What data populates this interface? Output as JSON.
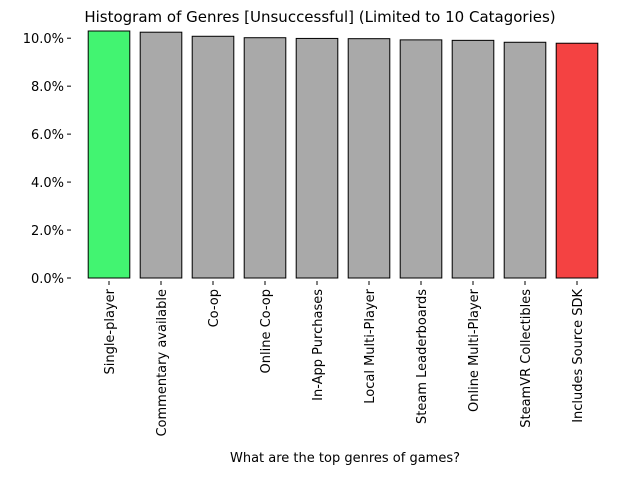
{
  "chart_data": {
    "type": "bar",
    "title": "Histogram of Genres [Unsuccessful] (Limited to 10 Catagories)",
    "xlabel": "What are the top genres of games?",
    "ylabel": "",
    "categories": [
      "Single-player",
      "Commentary available",
      "Co-op",
      "Online Co-op",
      "In-App Purchases",
      "Local Multi-Player",
      "Steam Leaderboards",
      "Online Multi-Player",
      "SteamVR Collectibles",
      "Includes Source SDK"
    ],
    "values": [
      10.3,
      10.25,
      10.08,
      10.02,
      9.99,
      9.98,
      9.93,
      9.91,
      9.83,
      9.79
    ],
    "value_format": "percent",
    "ylim": [
      0,
      10.3
    ],
    "yticks": [
      0,
      2,
      4,
      6,
      8,
      10
    ],
    "ytick_labels": [
      "0.0%",
      "2.0%",
      "4.0%",
      "6.0%",
      "8.0%",
      "10.0%"
    ],
    "colors": {
      "highest": "#42f471",
      "lowest": "#f44242",
      "default": "#a9a9a9",
      "edge": "#000000"
    },
    "grid": false,
    "legend": "none"
  }
}
